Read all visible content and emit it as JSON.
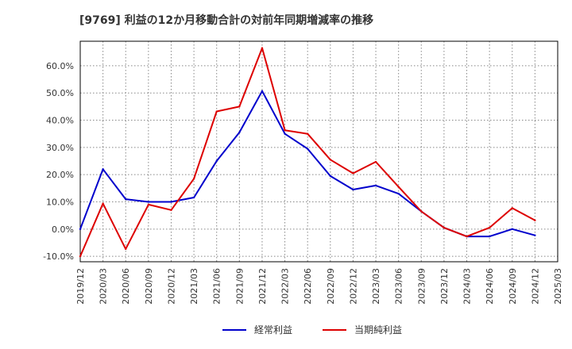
{
  "chart_data": {
    "type": "line",
    "title": "[9769]  利益の12か月移動合計の対前年同期増減率の推移",
    "categories": [
      "2019/12",
      "2020/03",
      "2020/06",
      "2020/09",
      "2020/12",
      "2021/03",
      "2021/06",
      "2021/09",
      "2021/12",
      "2022/03",
      "2022/06",
      "2022/09",
      "2022/12",
      "2023/03",
      "2023/06",
      "2023/09",
      "2023/12",
      "2024/03",
      "2024/06",
      "2024/09",
      "2024/12",
      "2025/03"
    ],
    "y_ticks": [
      "-10.0%",
      "0.0%",
      "10.0%",
      "20.0%",
      "30.0%",
      "40.0%",
      "50.0%",
      "60.0%"
    ],
    "y_tick_values": [
      -10,
      0,
      10,
      20,
      30,
      40,
      50,
      60
    ],
    "ylim": [
      -12,
      69
    ],
    "grid": true,
    "legend_position": "bottom",
    "series": [
      {
        "name": "経常利益",
        "color": "#0000cc",
        "values": [
          0,
          22,
          11,
          10,
          10,
          11.6,
          25,
          35.5,
          50.7,
          35,
          29.5,
          19.5,
          14.5,
          16,
          13,
          6.5,
          0.5,
          -2.7,
          -2.7,
          0,
          -2.3,
          null
        ]
      },
      {
        "name": "当期純利益",
        "color": "#dd0000",
        "values": [
          -10,
          9.4,
          -7.3,
          9,
          7,
          18.5,
          43.2,
          45,
          66.5,
          36.3,
          35,
          25.5,
          20.5,
          24.7,
          15.5,
          6.5,
          0.5,
          -2.7,
          0.5,
          7.7,
          3.2,
          null
        ]
      }
    ]
  }
}
